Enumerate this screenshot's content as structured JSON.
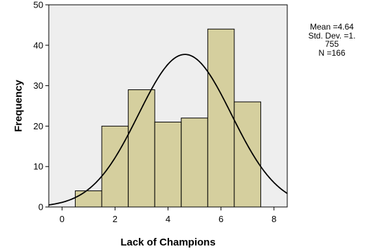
{
  "chart_data": {
    "type": "bar",
    "subtype": "histogram",
    "xlabel": "Lack of Champions",
    "ylabel": "Frequency",
    "xlim": [
      -0.5,
      8.5
    ],
    "ylim": [
      0,
      50
    ],
    "x_ticks": [
      0,
      2,
      4,
      6,
      8
    ],
    "y_ticks": [
      0,
      10,
      20,
      30,
      40,
      50
    ],
    "bins": [
      {
        "center": 1,
        "value": 4
      },
      {
        "center": 2,
        "value": 20
      },
      {
        "center": 3,
        "value": 29
      },
      {
        "center": 4,
        "value": 21
      },
      {
        "center": 5,
        "value": 22
      },
      {
        "center": 6,
        "value": 44
      },
      {
        "center": 7,
        "value": 26
      }
    ],
    "bin_width": 1,
    "normal_curve": {
      "mean": 4.64,
      "sd": 1.755,
      "n": 166
    },
    "bar_color": "#d5cf9e",
    "plot_background": "#eeeeee",
    "stats_text": [
      "Mean =4.64",
      "Std. Dev. =1.",
      "755",
      "N =166"
    ]
  }
}
